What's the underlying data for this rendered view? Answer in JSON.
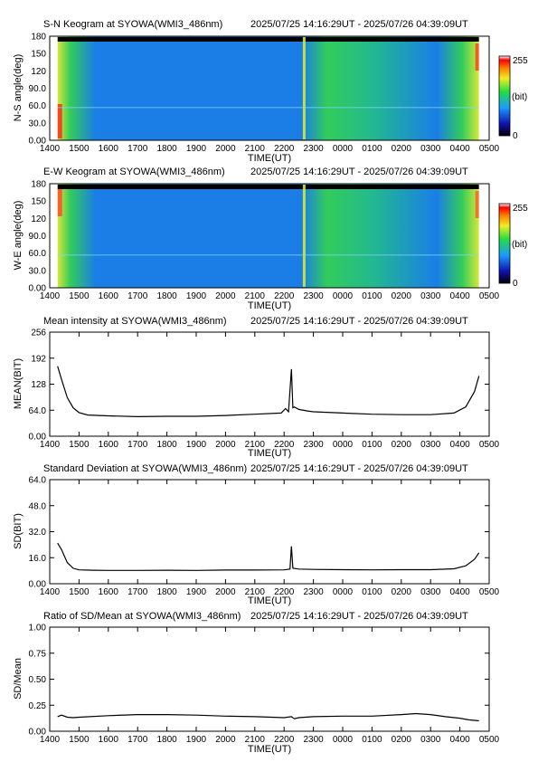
{
  "figure": {
    "station": "SYOWA(WMI3_486nm)",
    "period": "2025/07/25 14:16:29UT - 2025/07/26 04:39:09UT"
  },
  "chart_data": [
    {
      "type": "heatmap",
      "title": "S-N Keogram at SYOWA(WMI3_486nm)",
      "period": "2025/07/25 14:16:29UT - 2025/07/26 04:39:09UT",
      "xlabel": "TIME(UT)",
      "ylabel": "N-S angle(deg)",
      "x_ticks": [
        "1400",
        "1500",
        "1600",
        "1700",
        "1800",
        "1900",
        "2000",
        "2100",
        "2200",
        "2300",
        "0000",
        "0100",
        "0200",
        "0300",
        "0400",
        "0500"
      ],
      "y_ticks": [
        "0.00",
        "30.0",
        "60.0",
        "90.0",
        "120",
        "150",
        "180"
      ],
      "y_tick_values": [
        0,
        30,
        60,
        90,
        120,
        150,
        180
      ],
      "ylim": [
        0,
        180
      ],
      "colorbar": {
        "labels": [
          "255",
          "(bit)",
          "0"
        ],
        "range": [
          0,
          255
        ],
        "colormap": "rainbow"
      },
      "colors": {
        "background": "#1a7ee6",
        "bright": "#33cc5a",
        "edge": "#d4e83a",
        "peak": "#ff2a1a",
        "top_band": "#000000"
      }
    },
    {
      "type": "heatmap",
      "title": "E-W Keogram at SYOWA(WMI3_486nm)",
      "period": "2025/07/25 14:16:29UT - 2025/07/26 04:39:09UT",
      "xlabel": "TIME(UT)",
      "ylabel": "W-E angle(deg)",
      "x_ticks": [
        "1400",
        "1500",
        "1600",
        "1700",
        "1800",
        "1900",
        "2000",
        "2100",
        "2200",
        "2300",
        "0000",
        "0100",
        "0200",
        "0300",
        "0400",
        "0500"
      ],
      "y_ticks": [
        "0.00",
        "30.0",
        "60.0",
        "90.0",
        "120",
        "150",
        "180"
      ],
      "y_tick_values": [
        0,
        30,
        60,
        90,
        120,
        150,
        180
      ],
      "ylim": [
        0,
        180
      ],
      "colorbar": {
        "labels": [
          "255",
          "(bit)",
          "0"
        ],
        "range": [
          0,
          255
        ],
        "colormap": "rainbow"
      },
      "colors": {
        "background": "#1a7ee6",
        "bright": "#33cc5a",
        "edge": "#d4e83a",
        "peak": "#ff4a2a",
        "top_band": "#000000"
      }
    },
    {
      "type": "line",
      "title": "Mean intensity at SYOWA(WMI3_486nm)",
      "period": "2025/07/25 14:16:29UT - 2025/07/26 04:39:09UT",
      "xlabel": "TIME(UT)",
      "ylabel": "MEAN(BIT)",
      "x_ticks": [
        "1400",
        "1500",
        "1600",
        "1700",
        "1800",
        "1900",
        "2000",
        "2100",
        "2200",
        "2300",
        "0000",
        "0100",
        "0200",
        "0300",
        "0400",
        "0500"
      ],
      "y_ticks": [
        "0.00",
        "64.0",
        "128",
        "192",
        "256"
      ],
      "y_tick_values": [
        0,
        64,
        128,
        192,
        256
      ],
      "ylim": [
        0,
        256
      ],
      "x_hours": [
        14.27,
        14.4,
        14.6,
        14.8,
        15.0,
        15.3,
        16.0,
        17.0,
        18.0,
        19.0,
        20.0,
        21.0,
        21.9,
        22.05,
        22.15,
        22.25,
        22.3,
        22.35,
        22.5,
        22.8,
        23.0,
        24.0,
        25.0,
        26.0,
        27.0,
        27.8,
        28.2,
        28.5,
        28.65
      ],
      "y": [
        172,
        140,
        95,
        70,
        58,
        52,
        50,
        48,
        49,
        49,
        51,
        54,
        57,
        68,
        60,
        165,
        70,
        72,
        66,
        62,
        60,
        57,
        54,
        53,
        53,
        57,
        72,
        110,
        148
      ]
    },
    {
      "type": "line",
      "title": "Standard Deviation at SYOWA(WMI3_486nm)",
      "period": "2025/07/25 14:16:29UT - 2025/07/26 04:39:09UT",
      "xlabel": "TIME(UT)",
      "ylabel": "SD(BIT)",
      "x_ticks": [
        "1400",
        "1500",
        "1600",
        "1700",
        "1800",
        "1900",
        "2000",
        "2100",
        "2200",
        "2300",
        "0000",
        "0100",
        "0200",
        "0300",
        "0400",
        "0500"
      ],
      "y_ticks": [
        "0.00",
        "16.0",
        "32.0",
        "48.0",
        "64.0"
      ],
      "y_tick_values": [
        0,
        16,
        32,
        48,
        64
      ],
      "ylim": [
        0,
        64
      ],
      "x_hours": [
        14.27,
        14.4,
        14.6,
        14.8,
        15.0,
        15.5,
        16.0,
        17.0,
        18.0,
        19.0,
        20.0,
        21.0,
        22.0,
        22.2,
        22.25,
        22.3,
        22.5,
        23.0,
        24.0,
        25.0,
        26.0,
        27.0,
        27.8,
        28.2,
        28.5,
        28.65
      ],
      "y": [
        25,
        21,
        13,
        9.5,
        8.5,
        8.3,
        8.2,
        8.2,
        8.3,
        8.2,
        8.4,
        8.4,
        8.5,
        9.0,
        23,
        9.5,
        9.0,
        8.8,
        8.6,
        8.5,
        8.6,
        8.6,
        9.2,
        11,
        15,
        19
      ]
    },
    {
      "type": "line",
      "title": "Ratio of SD/Mean at SYOWA(WMI3_486nm)",
      "period": "2025/07/25 14:16:29UT - 2025/07/26 04:39:09UT",
      "xlabel": "TIME(UT)",
      "ylabel": "SD/Mean",
      "x_ticks": [
        "1400",
        "1500",
        "1600",
        "1700",
        "1800",
        "1900",
        "2000",
        "2100",
        "2200",
        "2300",
        "0000",
        "0100",
        "0200",
        "0300",
        "0400",
        "0500"
      ],
      "y_ticks": [
        "0.00",
        "0.25",
        "0.50",
        "0.75",
        "1.00"
      ],
      "y_tick_values": [
        0,
        0.25,
        0.5,
        0.75,
        1.0
      ],
      "ylim": [
        0,
        1.0
      ],
      "x_hours": [
        14.27,
        14.4,
        14.6,
        14.8,
        15.0,
        16.0,
        17.0,
        18.0,
        19.0,
        20.0,
        21.0,
        22.0,
        22.25,
        22.35,
        22.5,
        23.0,
        24.0,
        25.0,
        26.0,
        26.5,
        27.0,
        27.5,
        28.0,
        28.3,
        28.65
      ],
      "y": [
        0.14,
        0.155,
        0.135,
        0.13,
        0.135,
        0.15,
        0.16,
        0.16,
        0.155,
        0.145,
        0.14,
        0.13,
        0.14,
        0.12,
        0.13,
        0.14,
        0.145,
        0.145,
        0.16,
        0.17,
        0.16,
        0.14,
        0.125,
        0.11,
        0.1
      ]
    }
  ]
}
